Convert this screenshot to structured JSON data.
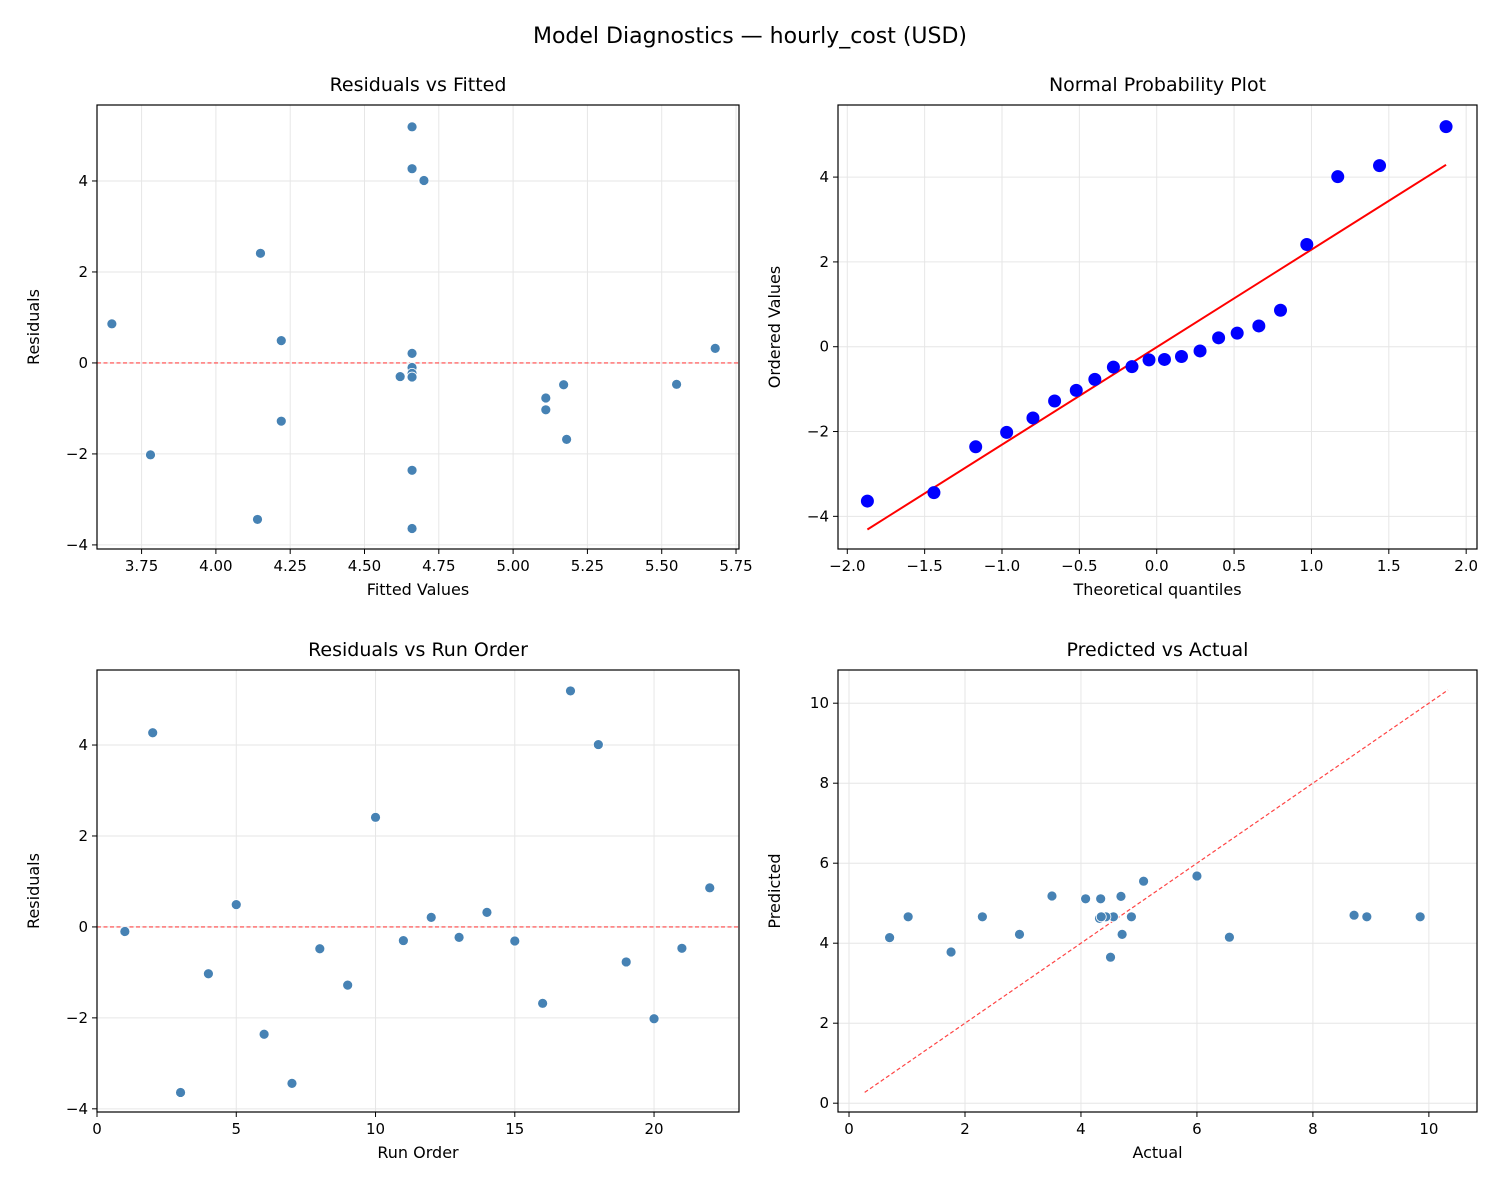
{
  "figure": {
    "title": "Model Diagnostics — hourly_cost (USD)"
  },
  "colors": {
    "points": "#4682b4",
    "qq_points": "#0000ff",
    "qq_line": "#ff0000",
    "reference_line": "#ff4444",
    "grid": "#e6e6e6"
  },
  "chart_data": [
    {
      "type": "scatter",
      "title": "Residuals vs Fitted",
      "xlabel": "Fitted Values",
      "ylabel": "Residuals",
      "xlim": [
        3.6,
        5.76
      ],
      "ylim": [
        -4.09,
        5.67
      ],
      "xticks": [
        "3.75",
        "4.00",
        "4.25",
        "4.50",
        "4.75",
        "5.00",
        "5.25",
        "5.50",
        "5.75"
      ],
      "yticks": [
        "−4",
        "−2",
        "0",
        "2",
        "4"
      ],
      "grid": true,
      "reference_line": {
        "type": "horizontal",
        "y": 0,
        "style": "dashed"
      },
      "x": [
        4.66,
        4.66,
        4.66,
        5.11,
        4.22,
        4.66,
        4.14,
        5.17,
        4.22,
        4.15,
        4.62,
        4.66,
        4.66,
        5.68,
        4.66,
        5.18,
        4.66,
        4.7,
        5.11,
        3.78,
        5.55,
        3.65
      ],
      "y": [
        -0.1,
        4.27,
        -3.64,
        -1.03,
        0.49,
        -2.36,
        -3.44,
        -0.48,
        -1.28,
        2.41,
        -0.3,
        0.21,
        -0.23,
        0.32,
        -0.31,
        -1.68,
        5.19,
        4.01,
        -0.77,
        -2.02,
        -0.47,
        0.86
      ]
    },
    {
      "type": "scatter",
      "title": "Normal Probability Plot",
      "xlabel": "Theoretical quantiles",
      "ylabel": "Ordered Values",
      "xlim": [
        -2.06,
        2.07
      ],
      "ylim": [
        -4.77,
        5.7
      ],
      "xticks": [
        "−2.0",
        "−1.5",
        "−1.0",
        "−0.5",
        "0.0",
        "0.5",
        "1.0",
        "1.5",
        "2.0"
      ],
      "yticks": [
        "−4",
        "−2",
        "0",
        "2",
        "4"
      ],
      "grid": true,
      "fit_line": {
        "x": [
          -1.87,
          1.87
        ],
        "y": [
          -4.31,
          4.29
        ],
        "style": "solid"
      },
      "x": [
        -1.87,
        -1.44,
        -1.17,
        -0.97,
        -0.8,
        -0.66,
        -0.52,
        -0.4,
        -0.28,
        -0.16,
        -0.05,
        0.05,
        0.16,
        0.28,
        0.4,
        0.52,
        0.66,
        0.8,
        0.97,
        1.17,
        1.44,
        1.87
      ],
      "y": [
        -3.64,
        -3.44,
        -2.36,
        -2.02,
        -1.68,
        -1.28,
        -1.03,
        -0.77,
        -0.48,
        -0.47,
        -0.31,
        -0.3,
        -0.23,
        -0.1,
        0.21,
        0.32,
        0.49,
        0.86,
        2.41,
        4.01,
        4.27,
        5.19
      ]
    },
    {
      "type": "scatter",
      "title": "Residuals vs Run Order",
      "xlabel": "Run Order",
      "ylabel": "Residuals",
      "xlim": [
        0,
        23.05
      ],
      "ylim": [
        -4.07,
        5.65
      ],
      "xticks": [
        "0",
        "5",
        "10",
        "15",
        "20"
      ],
      "yticks": [
        "−4",
        "−2",
        "0",
        "2",
        "4"
      ],
      "grid": true,
      "reference_line": {
        "type": "horizontal",
        "y": 0,
        "style": "dashed"
      },
      "x": [
        1,
        2,
        3,
        4,
        5,
        6,
        7,
        8,
        9,
        10,
        11,
        12,
        13,
        14,
        15,
        16,
        17,
        18,
        19,
        20,
        21,
        22
      ],
      "y": [
        -0.1,
        4.27,
        -3.64,
        -1.03,
        0.49,
        -2.36,
        -3.44,
        -0.48,
        -1.28,
        2.41,
        -0.3,
        0.21,
        -0.23,
        0.32,
        -0.31,
        -1.68,
        5.19,
        4.01,
        -0.77,
        -2.02,
        -0.47,
        0.86
      ]
    },
    {
      "type": "scatter",
      "title": "Predicted vs Actual",
      "xlabel": "Actual",
      "ylabel": "Predicted",
      "xlim": [
        -0.19,
        10.83
      ],
      "ylim": [
        -0.22,
        10.83
      ],
      "xticks": [
        "0",
        "2",
        "4",
        "6",
        "8",
        "10"
      ],
      "yticks": [
        "0",
        "2",
        "4",
        "6",
        "8",
        "10"
      ],
      "grid": true,
      "reference_line": {
        "type": "identity",
        "x": [
          0.27,
          10.33
        ],
        "y": [
          0.27,
          10.33
        ],
        "style": "dashed"
      },
      "x": [
        4.56,
        8.93,
        1.02,
        4.08,
        4.71,
        2.3,
        0.7,
        4.69,
        2.94,
        6.56,
        4.32,
        4.87,
        4.43,
        6.0,
        4.35,
        3.5,
        9.85,
        8.71,
        4.34,
        1.76,
        5.08,
        4.51
      ],
      "y": [
        4.66,
        4.66,
        4.66,
        5.11,
        4.22,
        4.66,
        4.14,
        5.17,
        4.22,
        4.15,
        4.62,
        4.66,
        4.66,
        5.68,
        4.66,
        5.18,
        4.66,
        4.7,
        5.11,
        3.78,
        5.55,
        3.65
      ]
    }
  ]
}
